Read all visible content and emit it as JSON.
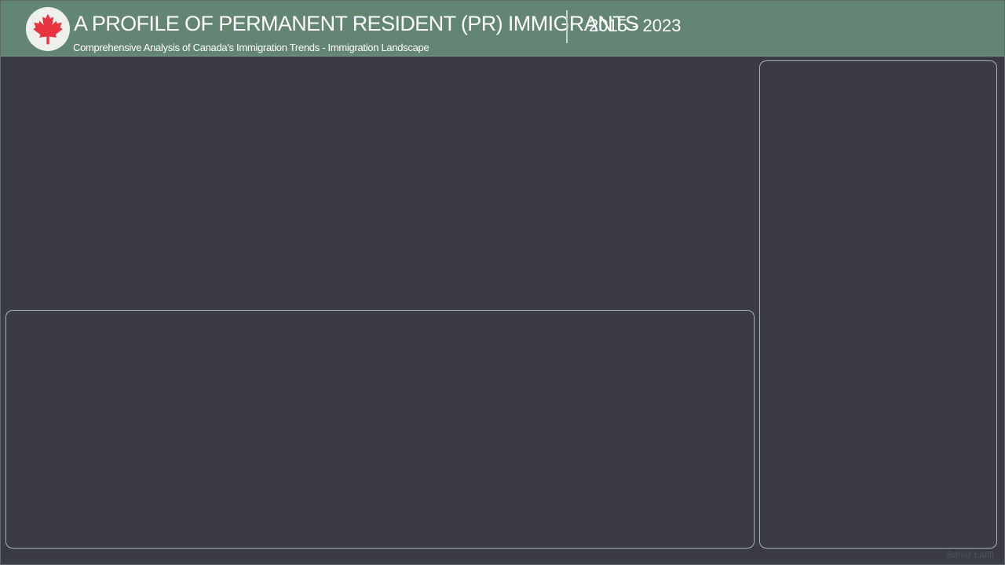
{
  "header": {
    "logo_icon": "maple-leaf-icon",
    "title": "A PROFILE OF PERMANENT RESIDENT (PR) IMMIGRANTS",
    "subtitle": "Comprehensive Analysis of Canada's Immigration Trends - Immigration Landscape",
    "years": "2015 - 2023"
  },
  "footer": {
    "credit": "Sahar Latifi"
  },
  "colors": {
    "header_bg": "#638574",
    "page_bg": "#3a3b45",
    "leaf": "#e8343f"
  }
}
